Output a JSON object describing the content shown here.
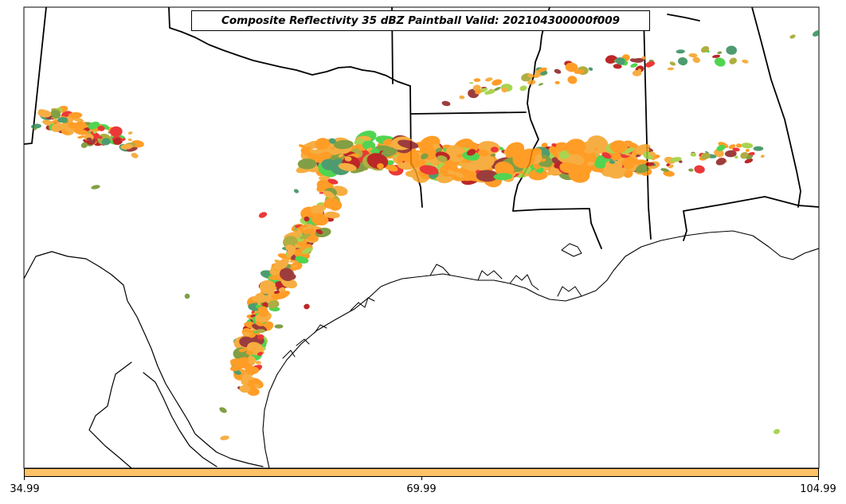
{
  "title": "Composite Reflectivity 35 dBZ Paintball Valid: 202104300000f009",
  "colorbar": {
    "color": "#ffc266",
    "ticks": [
      "34.99",
      "69.99",
      "104.99"
    ]
  },
  "member_colors": [
    "#ff8c00",
    "#f5a020",
    "#e81515",
    "#b00000",
    "#8b1a1a",
    "#6b8e23",
    "#2e8b57",
    "#32cd32",
    "#9acd32",
    "#a0a020"
  ],
  "boundary_color": "#000000"
}
